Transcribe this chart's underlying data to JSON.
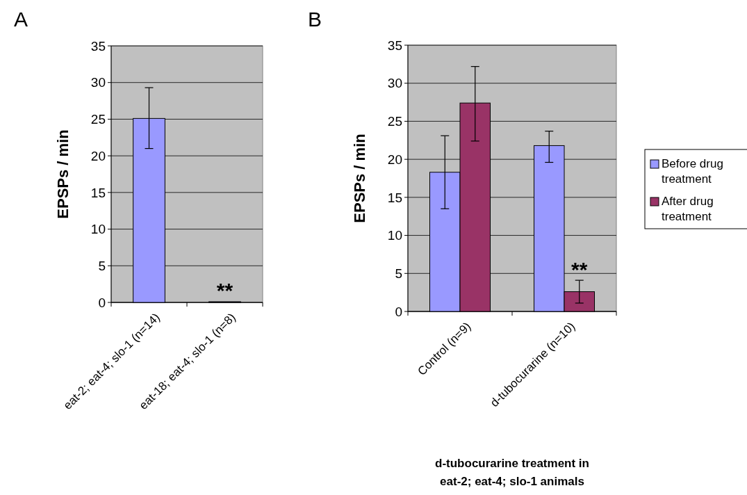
{
  "chart_data": [
    {
      "type": "bar",
      "title": "A",
      "ylabel": "EPSPs / min",
      "categories": [
        "eat-2; eat-4; slo-1 (n=14)",
        "eat-18; eat-4; slo-1 (n=8)"
      ],
      "series": [
        {
          "color": "#9999ff",
          "values": [
            25.1,
            0.1
          ],
          "errors": [
            [
              21.0,
              29.3
            ],
            null
          ]
        }
      ],
      "ylim": [
        0,
        35
      ],
      "yticks": [
        0,
        5,
        10,
        15,
        20,
        25,
        30,
        35
      ],
      "grid": "y",
      "legend": false,
      "annotations": [
        "**"
      ]
    },
    {
      "type": "bar",
      "title": "B",
      "ylabel": "EPSPs / min",
      "xlabel": "d-tubocurarine treatment in eat-2; eat-4; slo-1 animals",
      "categories": [
        "Control (n=9)",
        "d-tubocurarine (n=10)"
      ],
      "series": [
        {
          "name": "Before drug treatment",
          "color": "#9999ff",
          "values": [
            18.3,
            21.8
          ],
          "errors": [
            [
              13.5,
              23.1
            ],
            [
              19.6,
              23.7
            ]
          ]
        },
        {
          "name": "After drug treatment",
          "color": "#993366",
          "values": [
            27.4,
            2.6
          ],
          "errors": [
            [
              22.4,
              32.2
            ],
            [
              1.1,
              4.1
            ]
          ]
        }
      ],
      "ylim": [
        0,
        35
      ],
      "yticks": [
        0,
        5,
        10,
        15,
        20,
        25,
        30,
        35
      ],
      "grid": "y",
      "legend": "right",
      "annotations": [
        "**"
      ]
    }
  ]
}
